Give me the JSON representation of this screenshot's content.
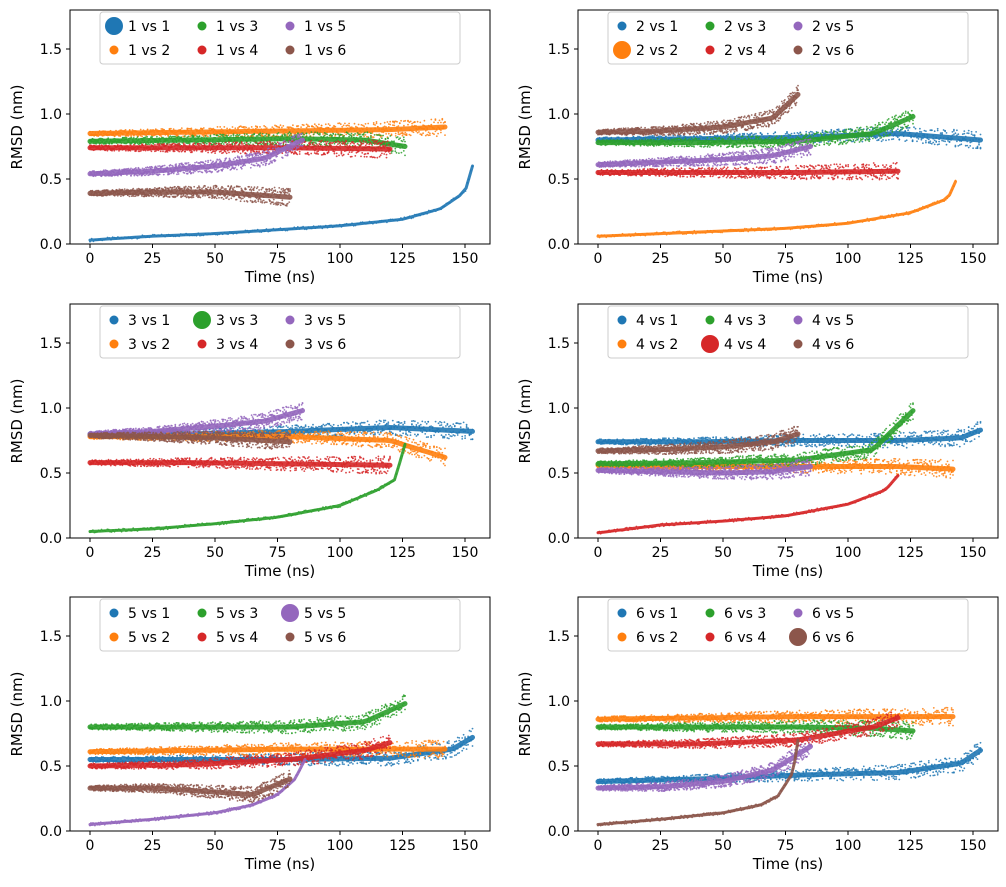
{
  "colors": {
    "tab_blue": "#1f77b4",
    "tab_orange": "#ff7f0e",
    "tab_green": "#2ca02c",
    "tab_red": "#d62728",
    "tab_purple": "#9467bd",
    "tab_brown": "#8c564b",
    "axes": "#000000",
    "legend_border": "#cccccc"
  },
  "chart_data": [
    {
      "type": "scatter",
      "panel": 1,
      "xlabel": "Time (ns)",
      "ylabel": "RMSD (nm)",
      "xlim": [
        -8,
        160
      ],
      "ylim": [
        0,
        1.8
      ],
      "xticks": [
        0,
        25,
        50,
        75,
        100,
        125,
        150
      ],
      "xtick_labels": [
        "0",
        "25",
        "50",
        "75",
        "100",
        "125",
        "150"
      ],
      "yticks": [
        0.0,
        0.5,
        1.0,
        1.5
      ],
      "ytick_labels": [
        "0.0",
        "0.5",
        "1.0",
        "1.5"
      ],
      "grid": false,
      "legend_placement": "top-center",
      "self_index": 1,
      "series": [
        {
          "name": "1 vs 1",
          "color": "#1f77b4",
          "x": [
            0,
            25,
            50,
            75,
            100,
            125,
            140,
            150,
            153
          ],
          "y": [
            0.03,
            0.06,
            0.08,
            0.11,
            0.14,
            0.19,
            0.27,
            0.4,
            0.6
          ]
        },
        {
          "name": "1 vs 2",
          "color": "#ff7f0e",
          "x": [
            0,
            40,
            80,
            120,
            142
          ],
          "y": [
            0.85,
            0.86,
            0.87,
            0.88,
            0.9
          ]
        },
        {
          "name": "1 vs 3",
          "color": "#2ca02c",
          "x": [
            0,
            40,
            80,
            110,
            126
          ],
          "y": [
            0.79,
            0.8,
            0.81,
            0.8,
            0.75
          ]
        },
        {
          "name": "1 vs 4",
          "color": "#d62728",
          "x": [
            0,
            40,
            80,
            120
          ],
          "y": [
            0.74,
            0.74,
            0.74,
            0.73
          ]
        },
        {
          "name": "1 vs 5",
          "color": "#9467bd",
          "x": [
            0,
            25,
            50,
            70,
            85
          ],
          "y": [
            0.54,
            0.56,
            0.6,
            0.66,
            0.8
          ]
        },
        {
          "name": "1 vs 6",
          "color": "#8c564b",
          "x": [
            0,
            25,
            50,
            65,
            80
          ],
          "y": [
            0.39,
            0.4,
            0.4,
            0.38,
            0.36
          ]
        }
      ]
    },
    {
      "type": "scatter",
      "panel": 2,
      "xlabel": "Time (ns)",
      "ylabel": "RMSD (nm)",
      "xlim": [
        -8,
        160
      ],
      "ylim": [
        0,
        1.8
      ],
      "xticks": [
        0,
        25,
        50,
        75,
        100,
        125,
        150
      ],
      "xtick_labels": [
        "0",
        "25",
        "50",
        "75",
        "100",
        "125",
        "150"
      ],
      "yticks": [
        0.0,
        0.5,
        1.0,
        1.5
      ],
      "ytick_labels": [
        "0.0",
        "0.5",
        "1.0",
        "1.5"
      ],
      "grid": false,
      "legend_placement": "top-center",
      "self_index": 2,
      "series": [
        {
          "name": "2 vs 1",
          "color": "#1f77b4",
          "x": [
            0,
            40,
            80,
            120,
            153
          ],
          "y": [
            0.8,
            0.81,
            0.82,
            0.85,
            0.8
          ]
        },
        {
          "name": "2 vs 2",
          "color": "#ff7f0e",
          "x": [
            0,
            25,
            50,
            75,
            100,
            125,
            140,
            143
          ],
          "y": [
            0.06,
            0.08,
            0.1,
            0.12,
            0.16,
            0.24,
            0.35,
            0.48
          ]
        },
        {
          "name": "2 vs 3",
          "color": "#2ca02c",
          "x": [
            0,
            40,
            80,
            110,
            126
          ],
          "y": [
            0.78,
            0.78,
            0.79,
            0.85,
            0.98
          ]
        },
        {
          "name": "2 vs 4",
          "color": "#d62728",
          "x": [
            0,
            40,
            80,
            120
          ],
          "y": [
            0.55,
            0.55,
            0.55,
            0.56
          ]
        },
        {
          "name": "2 vs 5",
          "color": "#9467bd",
          "x": [
            0,
            25,
            50,
            70,
            85
          ],
          "y": [
            0.61,
            0.63,
            0.65,
            0.68,
            0.75
          ]
        },
        {
          "name": "2 vs 6",
          "color": "#8c564b",
          "x": [
            0,
            25,
            50,
            70,
            80
          ],
          "y": [
            0.86,
            0.87,
            0.9,
            0.97,
            1.15
          ]
        }
      ]
    },
    {
      "type": "scatter",
      "panel": 3,
      "xlabel": "Time (ns)",
      "ylabel": "RMSD (nm)",
      "xlim": [
        -8,
        160
      ],
      "ylim": [
        0,
        1.8
      ],
      "xticks": [
        0,
        25,
        50,
        75,
        100,
        125,
        150
      ],
      "xtick_labels": [
        "0",
        "25",
        "50",
        "75",
        "100",
        "125",
        "150"
      ],
      "yticks": [
        0.0,
        0.5,
        1.0,
        1.5
      ],
      "ytick_labels": [
        "0.0",
        "0.5",
        "1.0",
        "1.5"
      ],
      "grid": false,
      "legend_placement": "top-center",
      "self_index": 3,
      "series": [
        {
          "name": "3 vs 1",
          "color": "#1f77b4",
          "x": [
            0,
            40,
            80,
            120,
            153
          ],
          "y": [
            0.8,
            0.8,
            0.82,
            0.85,
            0.82
          ]
        },
        {
          "name": "3 vs 2",
          "color": "#ff7f0e",
          "x": [
            0,
            40,
            80,
            120,
            142
          ],
          "y": [
            0.78,
            0.78,
            0.78,
            0.75,
            0.62
          ]
        },
        {
          "name": "3 vs 3",
          "color": "#2ca02c",
          "x": [
            0,
            25,
            50,
            75,
            100,
            115,
            122,
            126
          ],
          "y": [
            0.05,
            0.07,
            0.11,
            0.16,
            0.25,
            0.37,
            0.45,
            0.72
          ]
        },
        {
          "name": "3 vs 4",
          "color": "#d62728",
          "x": [
            0,
            40,
            80,
            120
          ],
          "y": [
            0.58,
            0.58,
            0.57,
            0.56
          ]
        },
        {
          "name": "3 vs 5",
          "color": "#9467bd",
          "x": [
            0,
            25,
            50,
            70,
            85
          ],
          "y": [
            0.8,
            0.82,
            0.86,
            0.9,
            0.98
          ]
        },
        {
          "name": "3 vs 6",
          "color": "#8c564b",
          "x": [
            0,
            25,
            50,
            70,
            80
          ],
          "y": [
            0.79,
            0.78,
            0.77,
            0.75,
            0.74
          ]
        }
      ]
    },
    {
      "type": "scatter",
      "panel": 4,
      "xlabel": "Time (ns)",
      "ylabel": "RMSD (nm)",
      "xlim": [
        -8,
        160
      ],
      "ylim": [
        0,
        1.8
      ],
      "xticks": [
        0,
        25,
        50,
        75,
        100,
        125,
        150
      ],
      "xtick_labels": [
        "0",
        "25",
        "50",
        "75",
        "100",
        "125",
        "150"
      ],
      "yticks": [
        0.0,
        0.5,
        1.0,
        1.5
      ],
      "ytick_labels": [
        "0.0",
        "0.5",
        "1.0",
        "1.5"
      ],
      "grid": false,
      "legend_placement": "top-center",
      "self_index": 4,
      "series": [
        {
          "name": "4 vs 1",
          "color": "#1f77b4",
          "x": [
            0,
            40,
            80,
            120,
            145,
            153
          ],
          "y": [
            0.74,
            0.74,
            0.75,
            0.75,
            0.77,
            0.83
          ]
        },
        {
          "name": "4 vs 2",
          "color": "#ff7f0e",
          "x": [
            0,
            40,
            80,
            120,
            142
          ],
          "y": [
            0.56,
            0.55,
            0.55,
            0.55,
            0.53
          ]
        },
        {
          "name": "4 vs 3",
          "color": "#2ca02c",
          "x": [
            0,
            40,
            80,
            110,
            126
          ],
          "y": [
            0.57,
            0.58,
            0.6,
            0.68,
            0.98
          ]
        },
        {
          "name": "4 vs 4",
          "color": "#d62728",
          "x": [
            0,
            25,
            50,
            75,
            100,
            115,
            120
          ],
          "y": [
            0.04,
            0.1,
            0.13,
            0.17,
            0.26,
            0.37,
            0.48
          ]
        },
        {
          "name": "4 vs 5",
          "color": "#9467bd",
          "x": [
            0,
            25,
            50,
            70,
            85
          ],
          "y": [
            0.52,
            0.51,
            0.5,
            0.51,
            0.55
          ]
        },
        {
          "name": "4 vs 6",
          "color": "#8c564b",
          "x": [
            0,
            25,
            50,
            70,
            80
          ],
          "y": [
            0.67,
            0.68,
            0.7,
            0.74,
            0.8
          ]
        }
      ]
    },
    {
      "type": "scatter",
      "panel": 5,
      "xlabel": "Time (ns)",
      "ylabel": "RMSD (nm)",
      "xlim": [
        -8,
        160
      ],
      "ylim": [
        0,
        1.8
      ],
      "xticks": [
        0,
        25,
        50,
        75,
        100,
        125,
        150
      ],
      "xtick_labels": [
        "0",
        "25",
        "50",
        "75",
        "100",
        "125",
        "150"
      ],
      "yticks": [
        0.0,
        0.5,
        1.0,
        1.5
      ],
      "ytick_labels": [
        "0.0",
        "0.5",
        "1.0",
        "1.5"
      ],
      "grid": false,
      "legend_placement": "top-center",
      "self_index": 5,
      "series": [
        {
          "name": "5 vs 1",
          "color": "#1f77b4",
          "x": [
            0,
            40,
            80,
            120,
            145,
            153
          ],
          "y": [
            0.55,
            0.55,
            0.55,
            0.56,
            0.63,
            0.72
          ]
        },
        {
          "name": "5 vs 2",
          "color": "#ff7f0e",
          "x": [
            0,
            40,
            80,
            120,
            142
          ],
          "y": [
            0.61,
            0.62,
            0.63,
            0.63,
            0.63
          ]
        },
        {
          "name": "5 vs 3",
          "color": "#2ca02c",
          "x": [
            0,
            40,
            80,
            110,
            126
          ],
          "y": [
            0.8,
            0.8,
            0.8,
            0.84,
            0.98
          ]
        },
        {
          "name": "5 vs 4",
          "color": "#d62728",
          "x": [
            0,
            40,
            80,
            110,
            120
          ],
          "y": [
            0.5,
            0.51,
            0.55,
            0.62,
            0.68
          ]
        },
        {
          "name": "5 vs 5",
          "color": "#9467bd",
          "x": [
            0,
            25,
            50,
            65,
            75,
            82,
            86
          ],
          "y": [
            0.05,
            0.09,
            0.14,
            0.2,
            0.28,
            0.4,
            0.55
          ]
        },
        {
          "name": "5 vs 6",
          "color": "#8c564b",
          "x": [
            0,
            25,
            50,
            65,
            80
          ],
          "y": [
            0.33,
            0.33,
            0.3,
            0.28,
            0.4
          ]
        }
      ]
    },
    {
      "type": "scatter",
      "panel": 6,
      "xlabel": "Time (ns)",
      "ylabel": "RMSD (nm)",
      "xlim": [
        -8,
        160
      ],
      "ylim": [
        0,
        1.8
      ],
      "xticks": [
        0,
        25,
        50,
        75,
        100,
        125,
        150
      ],
      "xtick_labels": [
        "0",
        "25",
        "50",
        "75",
        "100",
        "125",
        "150"
      ],
      "yticks": [
        0.0,
        0.5,
        1.0,
        1.5
      ],
      "ytick_labels": [
        "0.0",
        "0.5",
        "1.0",
        "1.5"
      ],
      "grid": false,
      "legend_placement": "top-center",
      "self_index": 6,
      "series": [
        {
          "name": "6 vs 1",
          "color": "#1f77b4",
          "x": [
            0,
            40,
            80,
            120,
            145,
            153
          ],
          "y": [
            0.38,
            0.4,
            0.43,
            0.45,
            0.52,
            0.62
          ]
        },
        {
          "name": "6 vs 2",
          "color": "#ff7f0e",
          "x": [
            0,
            40,
            80,
            120,
            142
          ],
          "y": [
            0.86,
            0.87,
            0.88,
            0.88,
            0.88
          ]
        },
        {
          "name": "6 vs 3",
          "color": "#2ca02c",
          "x": [
            0,
            40,
            80,
            110,
            126
          ],
          "y": [
            0.8,
            0.8,
            0.8,
            0.79,
            0.77
          ]
        },
        {
          "name": "6 vs 4",
          "color": "#d62728",
          "x": [
            0,
            40,
            80,
            110,
            120
          ],
          "y": [
            0.67,
            0.67,
            0.7,
            0.8,
            0.87
          ]
        },
        {
          "name": "6 vs 5",
          "color": "#9467bd",
          "x": [
            0,
            25,
            50,
            70,
            85
          ],
          "y": [
            0.33,
            0.34,
            0.38,
            0.47,
            0.65
          ]
        },
        {
          "name": "6 vs 6",
          "color": "#8c564b",
          "x": [
            0,
            25,
            50,
            65,
            72,
            78,
            80
          ],
          "y": [
            0.05,
            0.09,
            0.14,
            0.2,
            0.27,
            0.45,
            0.7
          ]
        }
      ]
    }
  ]
}
